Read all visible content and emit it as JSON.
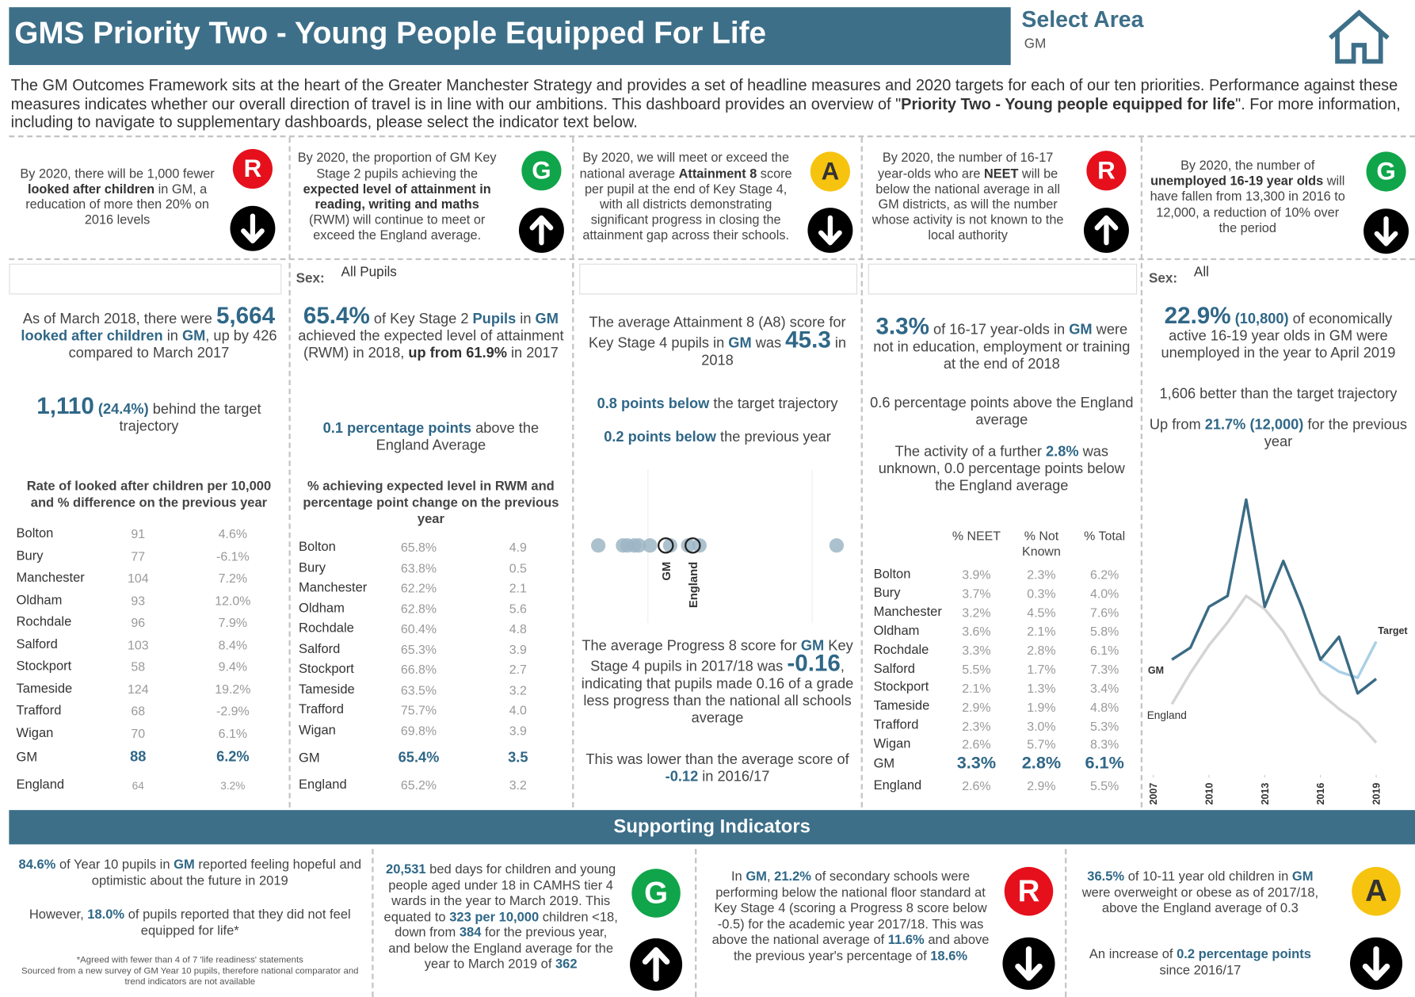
{
  "header": {
    "title": "GMS Priority Two - Young People Equipped For Life",
    "select_label": "Select Area",
    "select_value": "GM"
  },
  "rag_colors": {
    "R": "#e5101c",
    "G": "#10a54a",
    "A": "#f6c30f"
  },
  "intro": [
    "The GM Outcomes Framework sits at the heart of the Greater Manchester Strategy and provides a set of headline measures and 2020 targets for each of our ten priorities. Performance against these measures indicates whether our overall direction of travel is in line with our ambitions. This dashboard provides an overview of \"",
    {
      "b": "Priority Two - Young people equipped for life"
    },
    "\". For more information, including to navigate to supplementary dashboards, please select the indicator text below."
  ],
  "targets": [
    {
      "text": [
        "By 2020, there will be 1,000 fewer ",
        {
          "b": "looked after children"
        },
        " in GM, a reducation of more then 20% on 2016 levels"
      ],
      "rag": "R",
      "arrow": "down"
    },
    {
      "text": [
        "By 2020, the proportion of GM Key Stage 2 pupils achieving the ",
        {
          "b": "expected level of attainment in reading, writing and maths"
        },
        " (RWM) will continue to meet or exceed the England average."
      ],
      "rag": "G",
      "arrow": "up"
    },
    {
      "text": [
        "By 2020, we will meet or exceed the national average ",
        {
          "b": "Attainment 8"
        },
        " score per pupil at the end of Key Stage 4, with all districts demonstrating significant progress in closing the attainment gap across their schools."
      ],
      "rag": "A",
      "arrow": "down"
    },
    {
      "text": [
        "By 2020, the number of 16-17 year-olds who are ",
        {
          "b": "NEET"
        },
        " will be below the national average in all GM districts, as will the number whose activity is not known to the local authority"
      ],
      "rag": "R",
      "arrow": "up"
    },
    {
      "text": [
        "By 2020, the number of ",
        {
          "b": "unemployed 16-19 year olds"
        },
        " will have fallen from 13,300 in 2016 to 12,000, a reduction of 10% over the period"
      ],
      "rag": "G",
      "arrow": "down"
    }
  ],
  "panels": [
    {
      "stats": [
        [
          "As of March 2018, there were ",
          {
            "big": "5,664"
          },
          " ",
          {
            "em": "looked after children"
          },
          " in ",
          {
            "em": "GM"
          },
          ", up by 426 compared to March 2017"
        ],
        [
          {
            "big": "1,110"
          },
          " ",
          {
            "em": "(24.4%)"
          },
          " behind the target trajectory"
        ]
      ],
      "table": {
        "caption": "Rate of looked after children per 10,000 and % difference on the previous year",
        "rows": [
          [
            "Bolton",
            "91",
            "4.6%"
          ],
          [
            "Bury",
            "77",
            "-6.1%"
          ],
          [
            "Manchester",
            "104",
            "7.2%"
          ],
          [
            "Oldham",
            "93",
            "12.0%"
          ],
          [
            "Rochdale",
            "96",
            "7.9%"
          ],
          [
            "Salford",
            "103",
            "8.4%"
          ],
          [
            "Stockport",
            "58",
            "9.4%"
          ],
          [
            "Tameside",
            "124",
            "19.2%"
          ],
          [
            "Trafford",
            "68",
            "-2.9%"
          ],
          [
            "Wigan",
            "70",
            "6.1%"
          ],
          [
            "GM",
            "88",
            "6.2%"
          ],
          [
            "England",
            "64",
            "3.2%"
          ]
        ]
      }
    },
    {
      "filter": {
        "label": "Sex:",
        "value": "All Pupils"
      },
      "stats": [
        [
          {
            "big": "65.4%"
          },
          " of Key Stage 2 ",
          {
            "em": "Pupils"
          },
          " in ",
          {
            "em": "GM"
          },
          " achieved the expected level of attainment (RWM) in 2018, ",
          {
            "b": "up from 61.9%"
          },
          " in 2017"
        ],
        [
          {
            "em": "0.1 percentage points"
          },
          " above the England Average"
        ]
      ],
      "table": {
        "caption": "% achieving expected level in RWM and percentage point change on the previous year",
        "rows": [
          [
            "Bolton",
            "65.8%",
            "4.9"
          ],
          [
            "Bury",
            "63.8%",
            "0.5"
          ],
          [
            "Manchester",
            "62.2%",
            "2.1"
          ],
          [
            "Oldham",
            "62.8%",
            "5.6"
          ],
          [
            "Rochdale",
            "60.4%",
            "4.8"
          ],
          [
            "Salford",
            "65.3%",
            "3.9"
          ],
          [
            "Stockport",
            "66.8%",
            "2.7"
          ],
          [
            "Tameside",
            "63.5%",
            "3.2"
          ],
          [
            "Trafford",
            "75.7%",
            "4.0"
          ],
          [
            "Wigan",
            "69.8%",
            "3.9"
          ],
          [
            "GM",
            "65.4%",
            "3.5"
          ],
          [
            "England",
            "65.2%",
            "3.2"
          ]
        ]
      }
    },
    {
      "stats": [
        [
          "The average Attainment 8 (A8) score for Key Stage 4 pupils in ",
          {
            "em": "GM"
          },
          " was ",
          {
            "big": "45.3"
          },
          " in 2018"
        ],
        [
          {
            "em": "0.8 points below"
          },
          " the target trajectory"
        ],
        [
          {
            "em": "0.2 points below"
          },
          " the previous year"
        ],
        [
          "The average Progress 8 score for ",
          {
            "em": "GM"
          },
          " Key Stage 4 pupils in 2017/18 was ",
          {
            "big": "-0.16"
          },
          ", indicating that pupils made 0.16 of a grade less progress than the national all schools average"
        ],
        [
          "This was lower than the average score of ",
          {
            "em": "-0.12"
          },
          " in 2016/17"
        ]
      ]
    },
    {
      "stats": [
        [
          {
            "big": "3.3%"
          },
          " of 16-17 year-olds in ",
          {
            "em": "GM"
          },
          " were not in education,  employment or training at the end of 2018"
        ],
        [
          "0.6 percentage points above the England average"
        ],
        [
          "The activity of a further ",
          {
            "em": "2.8%"
          },
          " was unknown, 0.0 percentage points below the England average"
        ]
      ],
      "table": {
        "columns": [
          "% NEET",
          "% Not Known",
          "% Total"
        ],
        "rows": [
          [
            "Bolton",
            "3.9%",
            "2.3%",
            "6.2%"
          ],
          [
            "Bury",
            "3.7%",
            "0.3%",
            "4.0%"
          ],
          [
            "Manchester",
            "3.2%",
            "4.5%",
            "7.6%"
          ],
          [
            "Oldham",
            "3.6%",
            "2.1%",
            "5.8%"
          ],
          [
            "Rochdale",
            "3.3%",
            "2.8%",
            "6.1%"
          ],
          [
            "Salford",
            "5.5%",
            "1.7%",
            "7.3%"
          ],
          [
            "Stockport",
            "2.1%",
            "1.3%",
            "3.4%"
          ],
          [
            "Tameside",
            "2.9%",
            "1.9%",
            "4.8%"
          ],
          [
            "Trafford",
            "2.3%",
            "3.0%",
            "5.3%"
          ],
          [
            "Wigan",
            "2.6%",
            "5.7%",
            "8.3%"
          ],
          [
            "GM",
            "3.3%",
            "2.8%",
            "6.1%"
          ],
          [
            "England",
            "2.6%",
            "2.9%",
            "5.5%"
          ]
        ]
      }
    },
    {
      "filter": {
        "label": "Sex:",
        "value": "All"
      },
      "stats": [
        [
          {
            "big": "22.9%"
          },
          " ",
          {
            "em": "(10,800)"
          },
          " of economically active 16-19 year olds in GM were unemployed in the year to April 2019"
        ],
        [
          "1,606 better than the target trajectory"
        ],
        [
          "Up from ",
          {
            "em": "21.7% (12,000)"
          },
          " for the previous year"
        ]
      ]
    }
  ],
  "chart_data": [
    {
      "type": "strip",
      "color": "#9db6c6",
      "values": [
        42.3,
        43.4,
        43.6,
        43.9,
        44.1,
        44.6,
        45.5,
        46.3,
        46.8,
        52.9
      ],
      "highlights": [
        {
          "label": "GM",
          "value": 45.3
        },
        {
          "label": "England",
          "value": 46.5
        }
      ],
      "xlim": [
        41.8,
        53.4
      ]
    },
    {
      "type": "line",
      "x": [
        2008,
        2009,
        2010,
        2011,
        2012,
        2013,
        2014,
        2015,
        2016,
        2017,
        2018,
        2019
      ],
      "series": [
        {
          "name": "GM",
          "color": "#3a6b85",
          "values": [
            24.5,
            25.5,
            28.9,
            29.8,
            37.8,
            28.9,
            32.7,
            28.9,
            24.5,
            26.4,
            21.7,
            22.9
          ]
        },
        {
          "name": "England",
          "color": "#d4d4d4",
          "values": [
            20.8,
            23.4,
            25.7,
            27.6,
            29.8,
            28.7,
            26.8,
            24.2,
            21.7,
            20.4,
            19.3,
            17.6
          ]
        },
        {
          "name": "Target",
          "color": "#a9cfe5",
          "values": [
            null,
            null,
            null,
            null,
            null,
            null,
            null,
            null,
            24.5,
            23.5,
            23.0,
            26.0
          ]
        }
      ],
      "xlim": [
        2007,
        2019
      ],
      "xticks": [
        2007,
        2010,
        2013,
        2016,
        2019
      ],
      "ylim": [
        15,
        40
      ]
    }
  ],
  "supporting": {
    "title": "Supporting Indicators",
    "items": [
      {
        "paragraphs": [
          [
            {
              "em": "84.6%"
            },
            " of Year 10 pupils in ",
            {
              "em": "GM"
            },
            " reported feeling hopeful and optimistic about the future in 2019"
          ],
          [
            "However, ",
            {
              "em": "18.0%"
            },
            " of pupils reported that they did not feel equipped for life*"
          ]
        ],
        "notes": [
          "*Agreed with fewer than 4 of 7 'life readiness' statements",
          "Sourced from a new survey of GM Year 10 pupils, therefore national comparator and trend indicators are not available"
        ]
      },
      {
        "paragraphs": [
          [
            {
              "em": "20,531"
            },
            " bed days for children and young people aged under 18 in CAMHS tier 4 wards in the year to March 2019. This equated to ",
            {
              "em": "323 per 10,000"
            },
            " children <18, down from ",
            {
              "em": "384"
            },
            " for the previous year, and below the England average for the year to March 2019 of ",
            {
              "em": "362"
            }
          ]
        ],
        "rag": "G",
        "arrow": "up"
      },
      {
        "paragraphs": [
          [
            "In ",
            {
              "em": "GM"
            },
            ", ",
            {
              "em": "21.2%"
            },
            " of secondary schools were performing below the national floor standard at Key Stage 4 (scoring a Progress 8 score below -0.5) for the academic year 2017/18. This was above the national average of ",
            {
              "em": "11.6%"
            },
            " and above the previous year's percentage of ",
            {
              "em": "18.6%"
            }
          ]
        ],
        "rag": "R",
        "arrow": "down"
      },
      {
        "paragraphs": [
          [
            {
              "em": "36.5%"
            },
            " of 10-11 year old children in ",
            {
              "em": "GM"
            },
            " were overweight or obese as of 2017/18, above the England average of 0.3"
          ],
          [
            "An increase of ",
            {
              "em": "0.2 percentage points"
            },
            " since 2016/17"
          ]
        ],
        "rag": "A",
        "arrow": "down"
      }
    ]
  }
}
